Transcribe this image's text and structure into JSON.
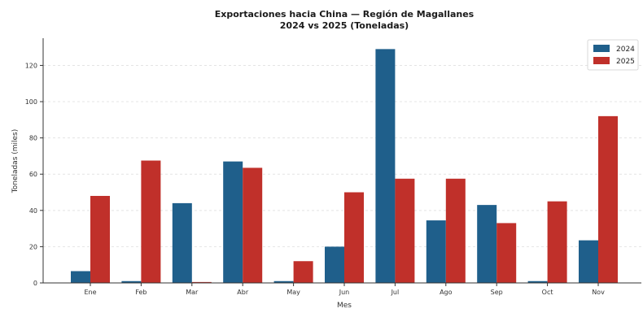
{
  "chart_data": {
    "type": "bar",
    "title": "Exportaciones hacia China — Región de Magallanes",
    "subtitle": "2024 vs 2025 (Toneladas)",
    "xlabel": "Mes",
    "ylabel": "Toneladas (miles)",
    "categories": [
      "Ene",
      "Feb",
      "Mar",
      "Abr",
      "May",
      "Jun",
      "Jul",
      "Ago",
      "Sep",
      "Oct",
      "Nov"
    ],
    "ylim": [
      0,
      135
    ],
    "yticks": [
      0,
      20,
      40,
      60,
      80,
      100,
      120
    ],
    "grid": true,
    "legend_position": "top-right",
    "series": [
      {
        "name": "2024",
        "color": "#1f5f8b",
        "values": [
          6.5,
          1.0,
          44,
          67,
          1.0,
          20,
          129,
          34.5,
          43,
          1.0,
          23.5
        ]
      },
      {
        "name": "2025",
        "color": "#c0302a",
        "values": [
          48,
          67.5,
          0.5,
          63.5,
          12,
          50,
          57.5,
          57.5,
          33,
          45,
          92
        ]
      }
    ]
  }
}
